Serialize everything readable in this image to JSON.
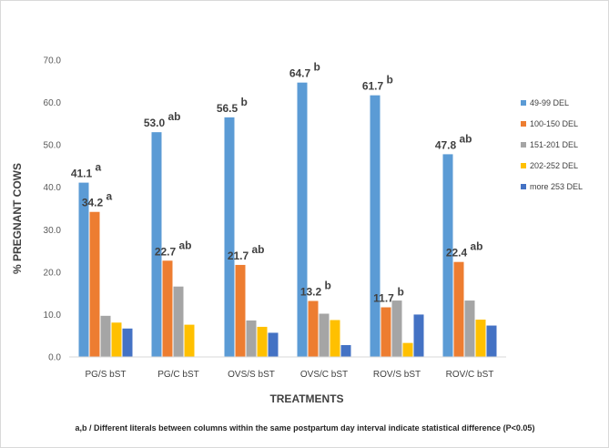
{
  "chart_data": {
    "type": "bar",
    "title": "",
    "xlabel": "TREATMENTS",
    "ylabel": "% PREGNANT COWS",
    "ylim": [
      0,
      70
    ],
    "yticks": [
      "0.0",
      "10.0",
      "20.0",
      "30.0",
      "40.0",
      "50.0",
      "60.0",
      "70.0"
    ],
    "grid": false,
    "legend_position": "right",
    "categories": [
      "PG/S bST",
      "PG/C bST",
      "OVS/S bST",
      "OVS/C bST",
      "ROV/S bST",
      "ROV/C bST"
    ],
    "series": [
      {
        "name": "49-99 DEL",
        "color": "#5B9BD5",
        "values": [
          41.1,
          53.0,
          56.5,
          64.7,
          61.7,
          47.8
        ]
      },
      {
        "name": "100-150 DEL",
        "color": "#ED7D31",
        "values": [
          34.2,
          22.7,
          21.7,
          13.2,
          11.7,
          22.4
        ]
      },
      {
        "name": "151-201 DEL",
        "color": "#A5A5A5",
        "values": [
          9.7,
          16.6,
          8.6,
          10.2,
          13.3,
          13.3
        ]
      },
      {
        "name": "202-252 DEL",
        "color": "#FFC000",
        "values": [
          8.1,
          7.6,
          7.1,
          8.7,
          3.3,
          8.8
        ]
      },
      {
        "name": "more 253 DEL",
        "color": "#4472C4",
        "values": [
          6.7,
          0,
          5.7,
          2.8,
          10.0,
          7.4
        ]
      }
    ],
    "data_labels": [
      {
        "category": 0,
        "series": 0,
        "text": "41.1",
        "sig": "a"
      },
      {
        "category": 0,
        "series": 1,
        "text": "34.2",
        "sig": "a"
      },
      {
        "category": 1,
        "series": 0,
        "text": "53.0",
        "sig": "ab"
      },
      {
        "category": 1,
        "series": 1,
        "text": "22.7",
        "sig": "ab"
      },
      {
        "category": 2,
        "series": 0,
        "text": "56.5",
        "sig": "b"
      },
      {
        "category": 2,
        "series": 1,
        "text": "21.7",
        "sig": "ab"
      },
      {
        "category": 3,
        "series": 0,
        "text": "64.7",
        "sig": "b"
      },
      {
        "category": 3,
        "series": 1,
        "text": "13.2",
        "sig": "b"
      },
      {
        "category": 4,
        "series": 0,
        "text": "61.7",
        "sig": "b"
      },
      {
        "category": 4,
        "series": 1,
        "text": "11.7",
        "sig": "b"
      },
      {
        "category": 5,
        "series": 0,
        "text": "47.8",
        "sig": "ab"
      },
      {
        "category": 5,
        "series": 1,
        "text": "22.4",
        "sig": "ab"
      }
    ],
    "footnote": "a,b / Different literals between columns within the same postpartum day interval indicate statistical difference (P<0.05)"
  }
}
